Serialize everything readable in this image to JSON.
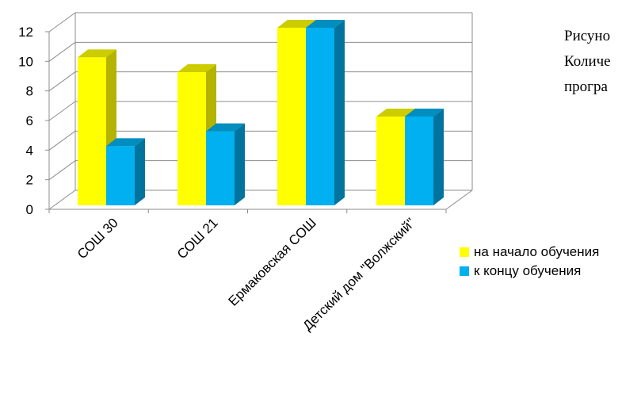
{
  "caption": {
    "lines": [
      "Рисуно",
      "Количе",
      "програ"
    ]
  },
  "chart_data": {
    "type": "bar",
    "categories": [
      "СОШ 30",
      "СОШ 21",
      "Ермаковская СОШ",
      "Детский дом \"Волжский\""
    ],
    "series": [
      {
        "name": "на начало обучения",
        "values": [
          10,
          9,
          12,
          6
        ],
        "color": "#FFFF00",
        "side_color": "#B3B300",
        "top_color": "#CCCC00"
      },
      {
        "name": "к концу обучения",
        "values": [
          4,
          5,
          12,
          6
        ],
        "color": "#00B0F0",
        "side_color": "#00749E",
        "top_color": "#008DC0"
      }
    ],
    "y_ticks": [
      "0",
      "2",
      "4",
      "6",
      "8",
      "10",
      "12"
    ],
    "ylim": [
      0,
      12
    ],
    "grid": true,
    "legend_position": "right",
    "three_d": true
  }
}
